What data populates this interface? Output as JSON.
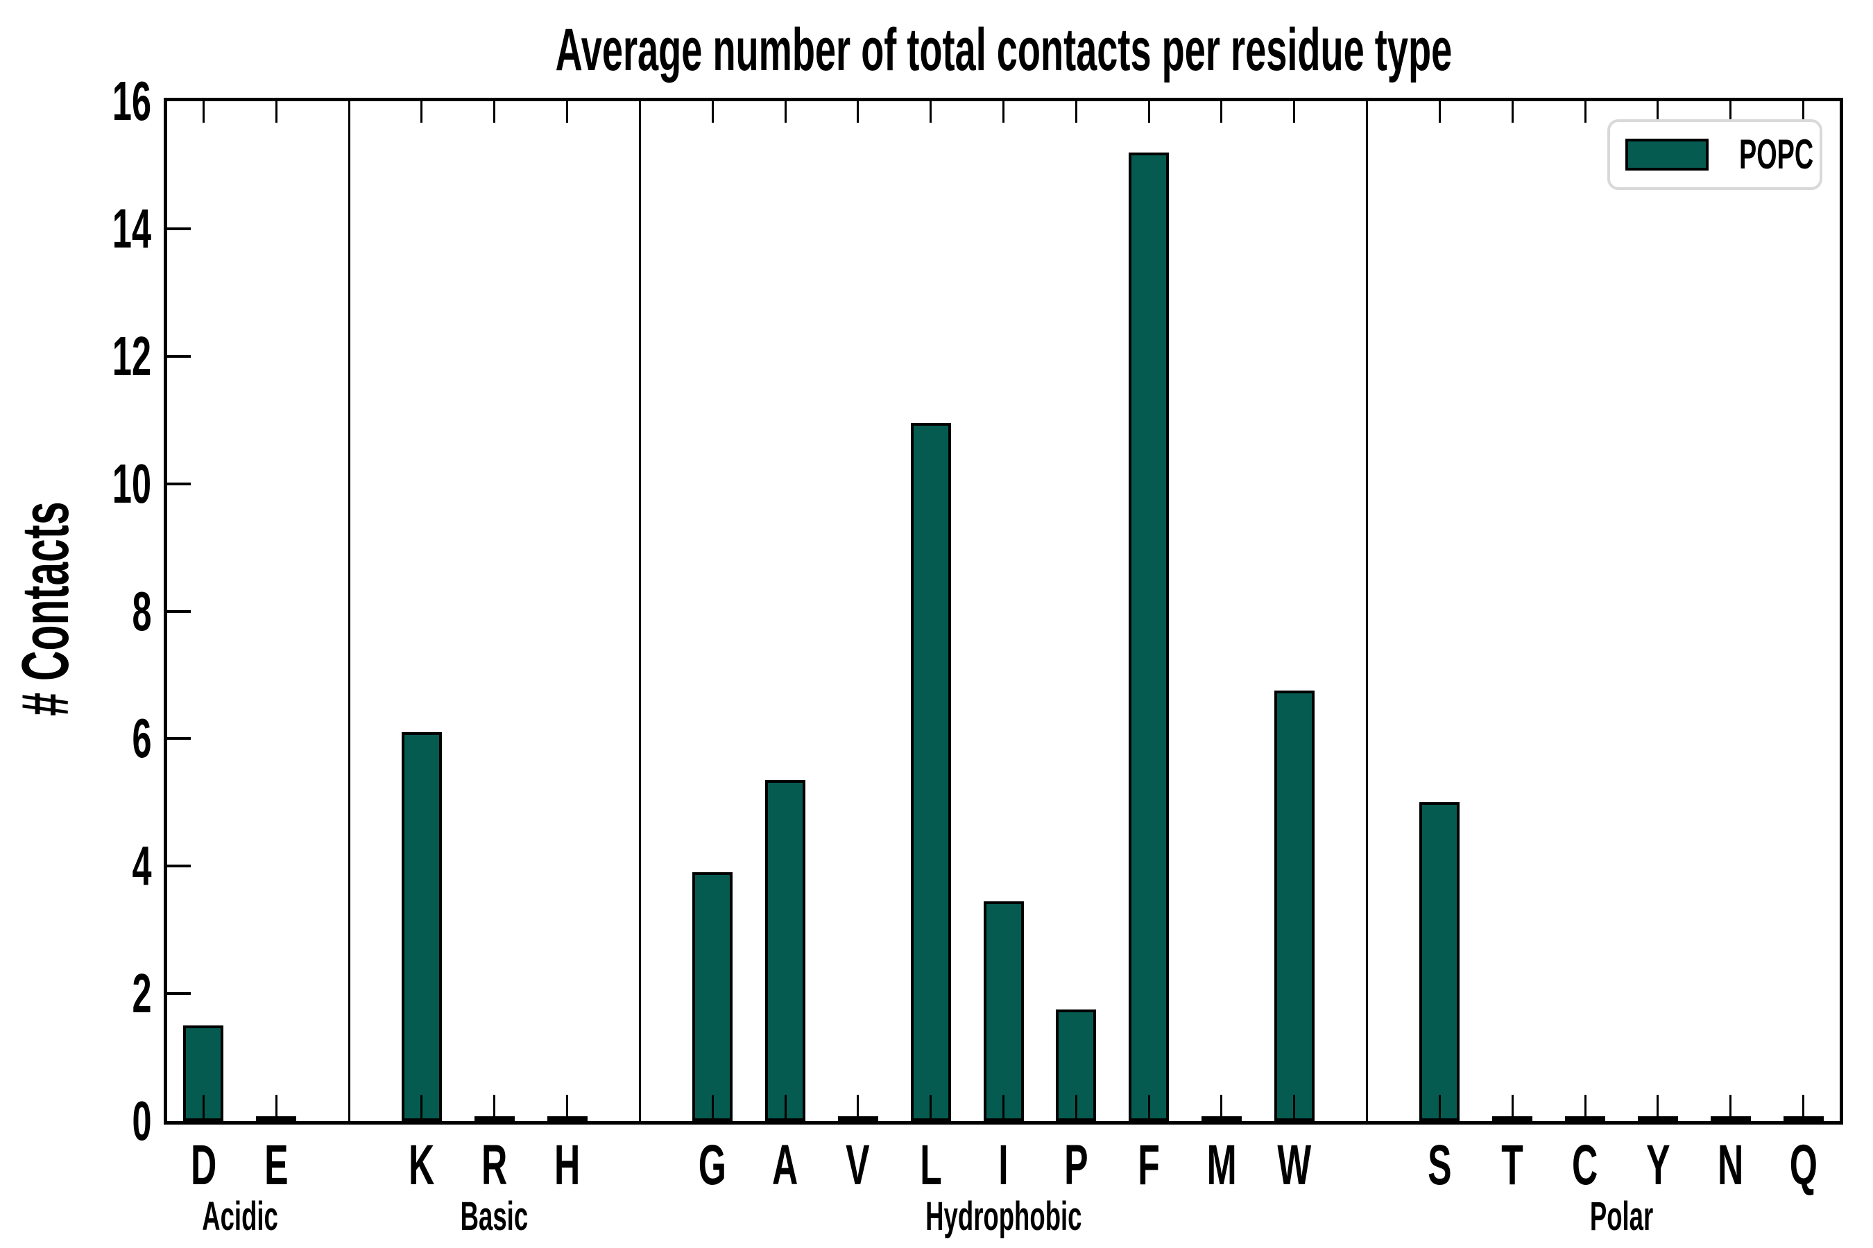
{
  "colors": {
    "bar_fill": "#065B50",
    "bar_edge": "#000000",
    "axis": "#000000",
    "legend_border": "#D9D9D9",
    "background": "#FFFFFF"
  },
  "legend": {
    "label": "POPC",
    "position": "upper right"
  },
  "chart_data": {
    "type": "bar",
    "title": "Average number of total contacts per residue type",
    "xlabel": "",
    "ylabel": "# Contacts",
    "ylim": [
      0,
      16
    ],
    "y_ticks": [
      0,
      2,
      4,
      6,
      8,
      10,
      12,
      14,
      16
    ],
    "grid": false,
    "legend_position": "upper right",
    "categories": [
      "D",
      "E",
      "K",
      "R",
      "H",
      "G",
      "A",
      "V",
      "L",
      "I",
      "P",
      "F",
      "M",
      "W",
      "S",
      "T",
      "C",
      "Y",
      "N",
      "Q"
    ],
    "values": [
      1.5,
      0.03,
      6.1,
      0.03,
      0.03,
      3.9,
      5.35,
      0.03,
      10.95,
      3.45,
      1.75,
      15.2,
      0.03,
      6.75,
      5.0,
      0.03,
      0.03,
      0.03,
      0.03,
      0.03
    ],
    "groups": [
      {
        "name": "Acidic",
        "count": 2
      },
      {
        "name": "Basic",
        "count": 3
      },
      {
        "name": "Hydrophobic",
        "count": 9
      },
      {
        "name": "Polar",
        "count": 6
      }
    ],
    "series": [
      {
        "name": "POPC",
        "values": [
          1.5,
          0.03,
          6.1,
          0.03,
          0.03,
          3.9,
          5.35,
          0.03,
          10.95,
          3.45,
          1.75,
          15.2,
          0.03,
          6.75,
          5.0,
          0.03,
          0.03,
          0.03,
          0.03,
          0.03
        ]
      }
    ]
  }
}
